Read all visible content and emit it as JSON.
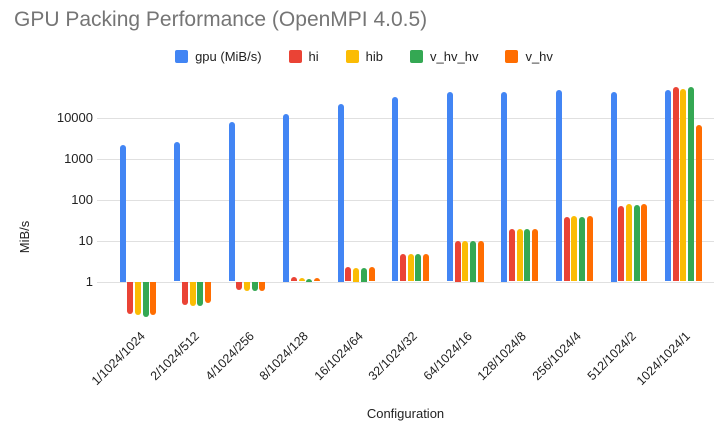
{
  "title": "GPU Packing Performance (OpenMPI 4.0.5)",
  "chart_data": {
    "type": "bar",
    "title": "GPU Packing Performance (OpenMPI 4.0.5)",
    "xlabel": "Configuration",
    "ylabel": "MiB/s",
    "y_scale": "log",
    "y_ticks": [
      1,
      10,
      100,
      1000,
      10000
    ],
    "ylim_log": [
      0.1,
      60000
    ],
    "grid": true,
    "legend_position": "top",
    "categories": [
      "1/1024/1024",
      "2/1024/512",
      "4/1024/256",
      "8/1024/128",
      "16/1024/64",
      "32/1024/32",
      "64/1024/16",
      "128/1024/8",
      "256/1024/4",
      "512/1024/2",
      "1024/1024/1"
    ],
    "series": [
      {
        "name": "gpu (MiB/s)",
        "color": "#4285f4",
        "values": [
          2200,
          2500,
          7800,
          12500,
          22000,
          32000,
          41000,
          43000,
          47000,
          43000,
          48000
        ]
      },
      {
        "name": "hi",
        "color": "#ea4335",
        "values": [
          0.16,
          0.27,
          0.63,
          1.3,
          2.3,
          4.8,
          10,
          19.5,
          37,
          70,
          55000
        ]
      },
      {
        "name": "hib",
        "color": "#fbbc04",
        "values": [
          0.15,
          0.26,
          0.6,
          1.2,
          2.2,
          4.6,
          9.8,
          19,
          39,
          78,
          50000
        ]
      },
      {
        "name": "v_hv_hv",
        "color": "#34a853",
        "values": [
          0.14,
          0.26,
          0.58,
          1.15,
          2.2,
          4.6,
          10,
          19.5,
          38,
          72,
          55000
        ]
      },
      {
        "name": "v_hv",
        "color": "#ff6d01",
        "values": [
          0.15,
          0.3,
          0.6,
          1.2,
          2.3,
          4.8,
          10,
          19.5,
          39,
          78,
          6500
        ]
      }
    ]
  }
}
